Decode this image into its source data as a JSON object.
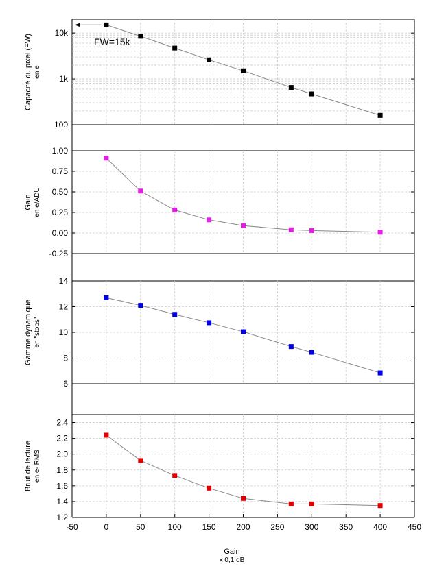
{
  "chart_data": [
    {
      "type": "line",
      "ylabel": "Capacité du pixel (FW)",
      "yunit": "en e",
      "yscale": "log",
      "ylim": [
        100,
        20000
      ],
      "yticks": [
        100,
        1000,
        10000
      ],
      "ytick_labels": [
        "100",
        "1k",
        "10k"
      ],
      "annotation": "FW=15k",
      "series": [
        {
          "color": "#000000",
          "x": [
            0,
            50,
            100,
            150,
            200,
            270,
            300,
            400
          ],
          "y": [
            15000,
            8500,
            4700,
            2600,
            1500,
            650,
            470,
            160
          ]
        }
      ]
    },
    {
      "type": "line",
      "ylabel": "Gain",
      "yunit": "en e/ADU",
      "ylim": [
        -0.25,
        1.0
      ],
      "yticks": [
        -0.25,
        0.0,
        0.25,
        0.5,
        0.75,
        1.0
      ],
      "ytick_labels": [
        "-0.25",
        "0.00",
        "0.25",
        "0.50",
        "0.75",
        "1.00"
      ],
      "series": [
        {
          "color": "#e020e0",
          "x": [
            0,
            50,
            100,
            150,
            200,
            270,
            300,
            400
          ],
          "y": [
            0.91,
            0.51,
            0.28,
            0.16,
            0.09,
            0.04,
            0.03,
            0.01
          ]
        }
      ]
    },
    {
      "type": "line",
      "ylabel": "Gamme dynamique",
      "yunit": "en \"stops\"",
      "ylim": [
        6,
        14
      ],
      "yticks": [
        6,
        8,
        10,
        12,
        14
      ],
      "ytick_labels": [
        "6",
        "8",
        "10",
        "12",
        "14"
      ],
      "series": [
        {
          "color": "#0000e0",
          "x": [
            0,
            50,
            100,
            150,
            200,
            270,
            300,
            400
          ],
          "y": [
            12.7,
            12.1,
            11.4,
            10.75,
            10.05,
            8.9,
            8.45,
            6.85
          ]
        }
      ]
    },
    {
      "type": "line",
      "ylabel": "Bruit de lecture",
      "yunit": "en e- RMS",
      "ylim": [
        1.2,
        2.5
      ],
      "yticks": [
        1.2,
        1.4,
        1.6,
        1.8,
        2.0,
        2.2,
        2.4
      ],
      "ytick_labels": [
        "1.2",
        "1.4",
        "1.6",
        "1.8",
        "2.0",
        "2.2",
        "2.4"
      ],
      "series": [
        {
          "color": "#e00000",
          "x": [
            0,
            50,
            100,
            150,
            200,
            270,
            300,
            400
          ],
          "y": [
            2.24,
            1.92,
            1.73,
            1.57,
            1.44,
            1.37,
            1.37,
            1.35
          ]
        }
      ]
    }
  ],
  "x_axis": {
    "title": "Gain",
    "unit": "x 0,1 dB",
    "xlim": [
      -50,
      450
    ],
    "xticks": [
      -50,
      0,
      50,
      100,
      150,
      200,
      250,
      300,
      350,
      400,
      450
    ],
    "xtick_labels": [
      "-50",
      "0",
      "50",
      "100",
      "150",
      "200",
      "250",
      "300",
      "350",
      "400",
      "450"
    ]
  }
}
